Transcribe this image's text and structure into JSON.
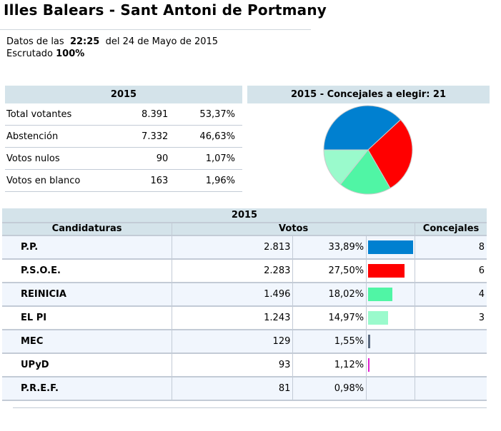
{
  "title": "Illes Balears - Sant Antoni de Portmany",
  "info": {
    "datos_prefix": "Datos de las",
    "time": "22:25",
    "date_text": "del 24 de Mayo de 2015",
    "escrutado_label": "Escrutado",
    "escrutado_value": "100%"
  },
  "summary": {
    "header": "2015",
    "rows": [
      {
        "label": "Total votantes",
        "value": "8.391",
        "pct": "53,37%"
      },
      {
        "label": "Abstención",
        "value": "7.332",
        "pct": "46,63%"
      },
      {
        "label": "Votos nulos",
        "value": "90",
        "pct": "1,07%"
      },
      {
        "label": "Votos en blanco",
        "value": "163",
        "pct": "1,96%"
      }
    ]
  },
  "pie": {
    "header": "2015 - Concejales a elegir: 21",
    "total_seats": 21
  },
  "results": {
    "year": "2015",
    "headers": {
      "party": "Candidaturas",
      "votes": "Votos",
      "seats": "Concejales"
    },
    "rows": [
      {
        "party": "P.P.",
        "votes": "2.813",
        "pct": "33,89%",
        "pct_value": 33.89,
        "seats": "8",
        "color": "#0080d0"
      },
      {
        "party": "P.S.O.E.",
        "votes": "2.283",
        "pct": "27,50%",
        "pct_value": 27.5,
        "seats": "6",
        "color": "#ff0000"
      },
      {
        "party": "REINICIA",
        "votes": "1.496",
        "pct": "18,02%",
        "pct_value": 18.02,
        "seats": "4",
        "color": "#50f5a5"
      },
      {
        "party": "EL PI",
        "votes": "1.243",
        "pct": "14,97%",
        "pct_value": 14.97,
        "seats": "3",
        "color": "#9afacc"
      },
      {
        "party": "MEC",
        "votes": "129",
        "pct": "1,55%",
        "pct_value": 1.55,
        "seats": "",
        "color": "#5a6a80"
      },
      {
        "party": "UPyD",
        "votes": "93",
        "pct": "1,12%",
        "pct_value": 1.12,
        "seats": "",
        "color": "#e020d0"
      },
      {
        "party": "P.R.E.F.",
        "votes": "81",
        "pct": "0,98%",
        "pct_value": 0.98,
        "seats": "",
        "color": ""
      }
    ]
  }
}
